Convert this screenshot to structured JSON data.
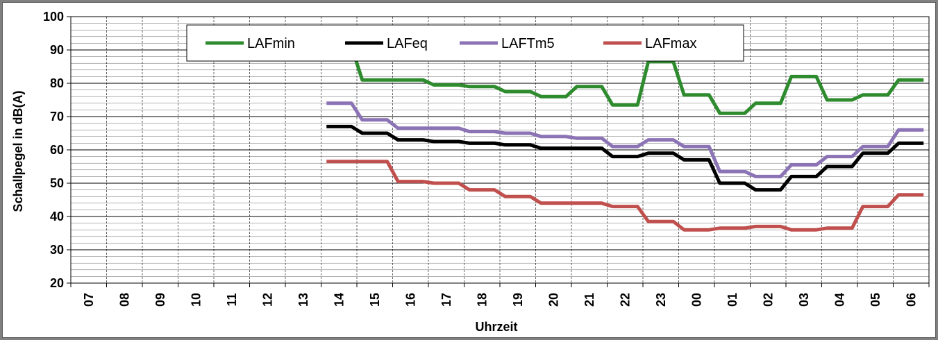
{
  "chart_data": {
    "type": "line",
    "title": "",
    "xlabel": "Uhrzeit",
    "ylabel": "Schallpegel in dB(A)",
    "ylim": [
      20,
      100
    ],
    "yticks": [
      "20",
      "30",
      "40",
      "50",
      "60",
      "70",
      "80",
      "90",
      "100"
    ],
    "categories": [
      "07",
      "08",
      "09",
      "10",
      "11",
      "12",
      "13",
      "14",
      "15",
      "16",
      "17",
      "18",
      "19",
      "20",
      "21",
      "22",
      "23",
      "00",
      "01",
      "02",
      "03",
      "04",
      "05",
      "06"
    ],
    "grid": true,
    "legend_position": "top-center",
    "series": [
      {
        "name": "LAFmin",
        "color": "#2e8b2e",
        "values": [
          null,
          null,
          null,
          null,
          null,
          null,
          null,
          91,
          81,
          81,
          79.5,
          79,
          77.5,
          76,
          79,
          73.5,
          86.5,
          76.5,
          71,
          74,
          82,
          75,
          76.5,
          81
        ]
      },
      {
        "name": "LAFeq",
        "color": "#000000",
        "values": [
          null,
          null,
          null,
          null,
          null,
          null,
          null,
          67,
          65,
          63,
          62.5,
          62,
          61.5,
          60.5,
          60.5,
          58,
          59,
          57,
          50,
          48,
          52,
          55,
          59,
          62
        ]
      },
      {
        "name": "LAFTm5",
        "color": "#8b73b5",
        "values": [
          null,
          null,
          null,
          null,
          null,
          null,
          null,
          74,
          69,
          66.5,
          66.5,
          65.5,
          65,
          64,
          63.5,
          61,
          63,
          61,
          53.5,
          52,
          55.5,
          58,
          61,
          66
        ]
      },
      {
        "name": "LAFmax",
        "color": "#c0504d",
        "values": [
          null,
          null,
          null,
          null,
          null,
          null,
          null,
          56.5,
          56.5,
          50.5,
          50,
          48,
          46,
          44,
          44,
          43,
          38.5,
          36,
          36.5,
          37,
          36,
          36.5,
          43,
          46.5
        ]
      }
    ]
  }
}
